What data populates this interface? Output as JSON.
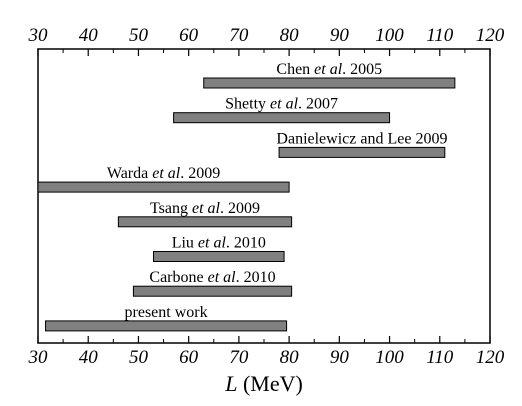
{
  "chart_data": {
    "type": "bar",
    "orientation": "horizontal-range",
    "xlabel": {
      "symbol": "L",
      "unit": " (MeV)"
    },
    "xlim": [
      30,
      120
    ],
    "xticks": [
      30,
      40,
      50,
      60,
      70,
      80,
      90,
      100,
      110,
      120
    ],
    "xticks_top_and_bottom": true,
    "grid": false,
    "bar_color": "#808080",
    "bar_edge_color": "#000000",
    "series": [
      {
        "label_pre": "Chen ",
        "label_italic": "et al",
        "label_post": ". 2005",
        "range": [
          63,
          113
        ]
      },
      {
        "label_pre": "Shetty ",
        "label_italic": "et al",
        "label_post": ". 2007",
        "range": [
          57,
          100
        ]
      },
      {
        "label_pre": "Danielewicz and Lee 2009",
        "label_italic": "",
        "label_post": "",
        "range": [
          78,
          111
        ]
      },
      {
        "label_pre": "Warda ",
        "label_italic": "et al",
        "label_post": ". 2009",
        "range": [
          30,
          80
        ]
      },
      {
        "label_pre": "Tsang ",
        "label_italic": "et al",
        "label_post": ". 2009",
        "range": [
          46,
          80.5
        ]
      },
      {
        "label_pre": "Liu ",
        "label_italic": "et al",
        "label_post": ". 2010",
        "range": [
          53,
          79
        ]
      },
      {
        "label_pre": "Carbone ",
        "label_italic": "et al",
        "label_post": ". 2010",
        "range": [
          49,
          80.5
        ]
      },
      {
        "label_pre": "present work",
        "label_italic": "",
        "label_post": "",
        "range": [
          31.5,
          79.5
        ]
      }
    ]
  }
}
